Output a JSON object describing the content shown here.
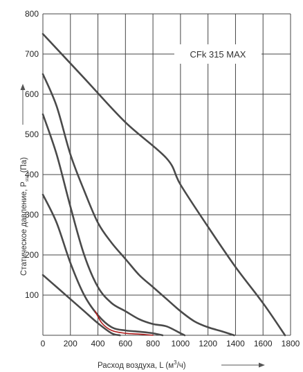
{
  "chart_data": {
    "type": "line",
    "title": "",
    "annotation": "CFk 315 MAX",
    "xlabel": "Расход воздуха, L (м³/ч)",
    "xlabel_parts": {
      "main": "Расход воздуха, L (м",
      "sup": "3",
      "tail": "/ч)"
    },
    "ylabel": "Статическое давление, Pstat (Па)",
    "ylabel_parts": {
      "main": "Статическое давление, P",
      "sub": "stat",
      "tail": " (Па)"
    },
    "xlim": [
      0,
      1800
    ],
    "ylim": [
      0,
      800
    ],
    "x_ticks": [
      0,
      200,
      400,
      600,
      800,
      1000,
      1200,
      1400,
      1600,
      1800
    ],
    "y_ticks": [
      100,
      200,
      300,
      400,
      500,
      600,
      700,
      800
    ],
    "grid": true,
    "line_color": "#4a4a4a",
    "highlight_color": "#b01c1c",
    "series": [
      {
        "points": [
          [
            0,
            750
          ],
          [
            300,
            640
          ],
          [
            600,
            530
          ],
          [
            900,
            440
          ],
          [
            1000,
            375
          ],
          [
            1200,
            270
          ],
          [
            1400,
            170
          ],
          [
            1600,
            80
          ],
          [
            1760,
            0
          ]
        ]
      },
      {
        "points": [
          [
            0,
            650
          ],
          [
            100,
            570
          ],
          [
            200,
            450
          ],
          [
            300,
            360
          ],
          [
            400,
            280
          ],
          [
            500,
            230
          ],
          [
            600,
            190
          ],
          [
            700,
            150
          ],
          [
            800,
            120
          ],
          [
            900,
            90
          ],
          [
            1000,
            60
          ],
          [
            1100,
            35
          ],
          [
            1200,
            20
          ],
          [
            1300,
            10
          ],
          [
            1390,
            0
          ]
        ]
      },
      {
        "points": [
          [
            0,
            550
          ],
          [
            100,
            450
          ],
          [
            200,
            320
          ],
          [
            300,
            200
          ],
          [
            400,
            120
          ],
          [
            500,
            80
          ],
          [
            600,
            60
          ],
          [
            700,
            40
          ],
          [
            800,
            28
          ],
          [
            900,
            22
          ],
          [
            1000,
            5
          ],
          [
            1030,
            0
          ]
        ]
      },
      {
        "points": [
          [
            0,
            350
          ],
          [
            100,
            280
          ],
          [
            200,
            180
          ],
          [
            300,
            100
          ],
          [
            400,
            50
          ],
          [
            500,
            20
          ],
          [
            600,
            12
          ],
          [
            700,
            9
          ],
          [
            800,
            5
          ],
          [
            870,
            0
          ]
        ]
      },
      {
        "points": [
          [
            0,
            150
          ],
          [
            100,
            120
          ],
          [
            200,
            90
          ],
          [
            300,
            60
          ],
          [
            400,
            30
          ],
          [
            500,
            5
          ],
          [
            560,
            0
          ]
        ]
      }
    ],
    "highlight": {
      "points": [
        [
          380,
          60
        ],
        [
          430,
          30
        ],
        [
          500,
          12
        ],
        [
          600,
          5
        ],
        [
          700,
          3
        ],
        [
          800,
          0
        ]
      ]
    }
  }
}
